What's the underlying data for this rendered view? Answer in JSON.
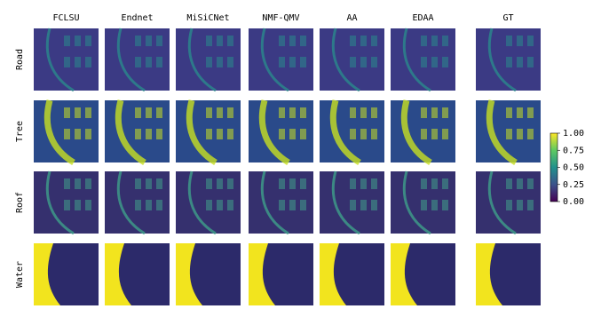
{
  "chart_data": {
    "type": "image-grid",
    "columns": [
      "FCLSU",
      "Endnet",
      "MiSiCNet",
      "NMF-QMV",
      "AA",
      "EDAA",
      "GT"
    ],
    "rows": [
      "Road",
      "Tree",
      "Roof",
      "Water"
    ],
    "colorbar": {
      "ylim": [
        0,
        1
      ],
      "yticks": [
        {
          "value": 0,
          "label": "0.00"
        },
        {
          "value": 0.25,
          "label": "0.25"
        },
        {
          "value": 0.5,
          "label": "0.50"
        },
        {
          "value": 0.75,
          "label": "0.75"
        },
        {
          "value": 1,
          "label": "1.00"
        }
      ]
    }
  }
}
